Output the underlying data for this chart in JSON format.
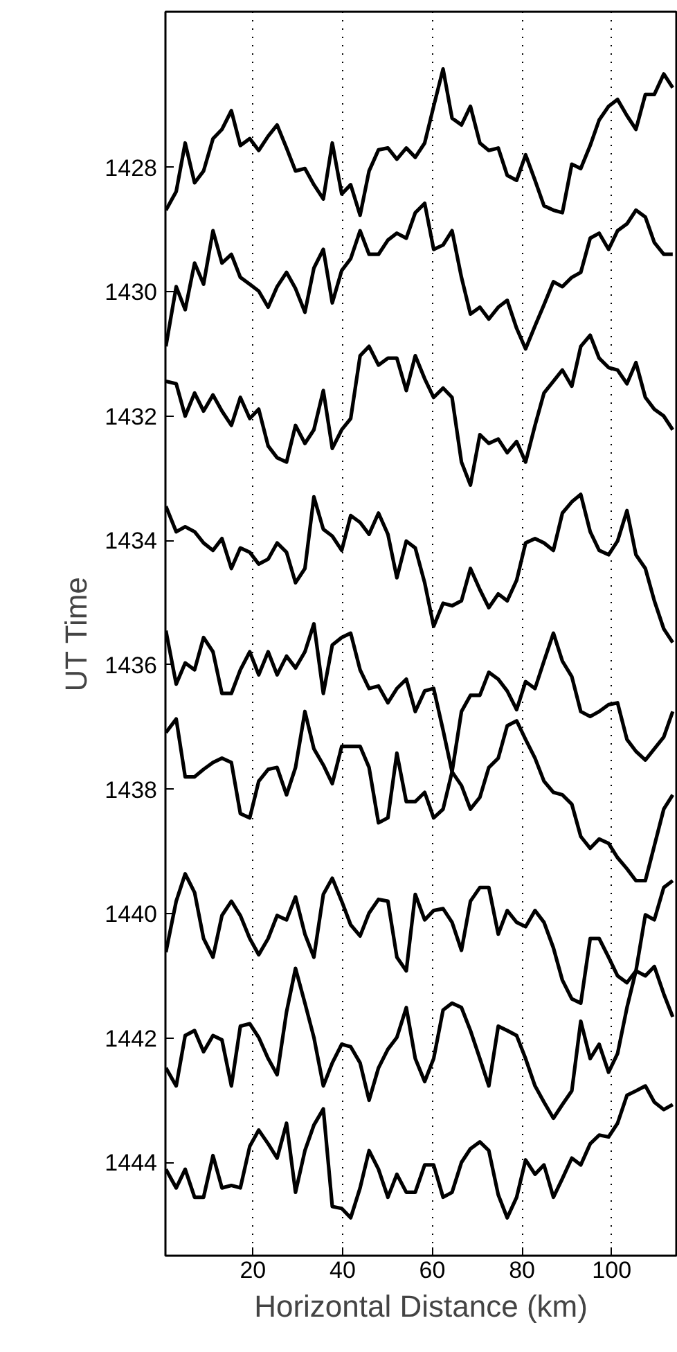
{
  "chart_data": {
    "type": "line",
    "xlabel": "Horizontal Distance (km)",
    "ylabel": "UT Time",
    "xlim": [
      0.5,
      114.4
    ],
    "ylim": [
      1445.5,
      1425.5
    ],
    "xticks": [
      20,
      40,
      60,
      80,
      100
    ],
    "yticks": [
      1428,
      1430,
      1432,
      1434,
      1436,
      1438,
      1440,
      1442,
      1444
    ],
    "grid": "x",
    "line_style": "solid",
    "x": [
      0.6,
      2.9,
      4.9,
      7.0,
      9.0,
      11.1,
      13.1,
      15.2,
      17.2,
      19.3,
      21.3,
      23.4,
      25.4,
      27.5,
      29.5,
      31.6,
      33.6,
      35.7,
      37.7,
      39.8,
      41.8,
      43.9,
      45.9,
      48.0,
      50.1,
      52.1,
      54.2,
      56.2,
      58.3,
      60.3,
      62.4,
      64.4,
      66.5,
      68.5,
      70.6,
      72.6,
      74.7,
      76.7,
      78.8,
      80.8,
      82.9,
      84.9,
      87.0,
      89.0,
      91.1,
      93.1,
      95.2,
      97.2,
      99.3,
      101.3,
      103.4,
      105.4,
      107.5,
      109.5,
      111.6,
      113.6
    ],
    "series": [
      {
        "color": "#000000",
        "values": [
          1428.69,
          1428.39,
          1427.61,
          1428.25,
          1428.06,
          1427.54,
          1427.39,
          1427.09,
          1427.65,
          1427.54,
          1427.73,
          1427.5,
          1427.32,
          1427.69,
          1428.06,
          1428.02,
          1428.28,
          1428.51,
          1427.61,
          1428.43,
          1428.28,
          1428.77,
          1428.06,
          1427.72,
          1427.69,
          1427.87,
          1427.69,
          1427.84,
          1427.61,
          1427.02,
          1426.42,
          1427.21,
          1427.32,
          1427.02,
          1427.61,
          1427.73,
          1427.69,
          1428.13,
          1428.21,
          1427.8,
          1428.21,
          1428.62,
          1428.69,
          1428.73,
          1427.95,
          1428.02,
          1427.65,
          1427.24,
          1427.02,
          1426.91,
          1427.17,
          1427.39,
          1426.83,
          1426.83,
          1426.5,
          1426.72
        ]
      },
      {
        "color": "#000000",
        "values": [
          1430.88,
          1429.92,
          1430.29,
          1429.54,
          1429.88,
          1429.02,
          1429.54,
          1429.4,
          1429.77,
          1429.88,
          1429.99,
          1430.25,
          1429.92,
          1429.69,
          1429.95,
          1430.33,
          1429.62,
          1429.32,
          1430.18,
          1429.66,
          1429.47,
          1429.02,
          1429.4,
          1429.4,
          1429.17,
          1429.06,
          1429.14,
          1428.73,
          1428.58,
          1429.32,
          1429.25,
          1429.02,
          1429.77,
          1430.36,
          1430.25,
          1430.44,
          1430.25,
          1430.14,
          1430.59,
          1430.92,
          1430.55,
          1430.21,
          1429.84,
          1429.92,
          1429.77,
          1429.69,
          1429.14,
          1429.06,
          1429.32,
          1429.02,
          1428.91,
          1428.69,
          1428.8,
          1429.21,
          1429.4,
          1429.4
        ]
      },
      {
        "color": "#000000",
        "values": [
          1431.44,
          1431.48,
          1432.0,
          1431.63,
          1431.92,
          1431.66,
          1431.92,
          1432.15,
          1431.7,
          1432.04,
          1431.89,
          1432.48,
          1432.67,
          1432.74,
          1432.15,
          1432.44,
          1432.22,
          1431.59,
          1432.52,
          1432.22,
          1432.04,
          1431.03,
          1430.88,
          1431.18,
          1431.07,
          1431.07,
          1431.59,
          1431.03,
          1431.4,
          1431.7,
          1431.55,
          1431.7,
          1432.74,
          1433.11,
          1432.3,
          1432.44,
          1432.37,
          1432.59,
          1432.41,
          1432.74,
          1432.15,
          1431.63,
          1431.44,
          1431.26,
          1431.52,
          1430.88,
          1430.7,
          1431.07,
          1431.22,
          1431.26,
          1431.48,
          1431.14,
          1431.7,
          1431.89,
          1432.0,
          1432.22
        ]
      },
      {
        "color": "#000000",
        "values": [
          1433.45,
          1433.86,
          1433.78,
          1433.86,
          1434.04,
          1434.16,
          1433.97,
          1434.45,
          1434.12,
          1434.19,
          1434.38,
          1434.3,
          1434.04,
          1434.19,
          1434.68,
          1434.45,
          1433.3,
          1433.82,
          1433.93,
          1434.16,
          1433.6,
          1433.71,
          1433.9,
          1433.56,
          1433.9,
          1434.6,
          1434.01,
          1434.12,
          1434.68,
          1435.38,
          1435.01,
          1435.05,
          1434.97,
          1434.45,
          1434.79,
          1435.08,
          1434.86,
          1434.97,
          1434.64,
          1434.04,
          1433.97,
          1434.04,
          1434.16,
          1433.56,
          1433.38,
          1433.26,
          1433.86,
          1434.16,
          1434.23,
          1434.01,
          1433.52,
          1434.23,
          1434.45,
          1434.97,
          1435.42,
          1435.64
        ]
      },
      {
        "color": "#000000",
        "values": [
          1435.45,
          1436.31,
          1435.97,
          1436.08,
          1435.56,
          1435.79,
          1436.46,
          1436.46,
          1436.08,
          1435.79,
          1436.16,
          1435.79,
          1436.16,
          1435.86,
          1436.05,
          1435.79,
          1435.34,
          1436.46,
          1435.68,
          1435.56,
          1435.49,
          1436.08,
          1436.38,
          1436.34,
          1436.61,
          1436.38,
          1436.23,
          1436.75,
          1436.42,
          1436.38,
          1437.05,
          1437.72,
          1436.75,
          1436.49,
          1436.49,
          1436.12,
          1436.23,
          1436.42,
          1436.72,
          1436.27,
          1436.38,
          1435.94,
          1435.49,
          1435.94,
          1436.19,
          1436.75,
          1436.83,
          1436.75,
          1436.64,
          1436.61,
          1437.2,
          1437.39,
          1437.53,
          1437.35,
          1437.16,
          1436.75
        ]
      },
      {
        "color": "#000000",
        "values": [
          1437.09,
          1436.87,
          1437.8,
          1437.8,
          1437.68,
          1437.57,
          1437.5,
          1437.57,
          1438.39,
          1438.46,
          1437.87,
          1437.68,
          1437.65,
          1438.09,
          1437.65,
          1436.75,
          1437.35,
          1437.61,
          1437.91,
          1437.31,
          1437.31,
          1437.31,
          1437.65,
          1438.54,
          1438.46,
          1437.42,
          1438.2,
          1438.2,
          1438.05,
          1438.46,
          1438.32,
          1437.72,
          1437.94,
          1438.32,
          1438.13,
          1437.65,
          1437.5,
          1436.98,
          1436.9,
          1437.2,
          1437.5,
          1437.87,
          1438.05,
          1438.09,
          1438.24,
          1438.76,
          1438.95,
          1438.8,
          1438.87,
          1439.1,
          1439.28,
          1439.47,
          1439.47,
          1438.91,
          1438.32,
          1438.09
        ]
      },
      {
        "color": "#000000",
        "values": [
          1440.62,
          1439.8,
          1439.36,
          1439.66,
          1440.4,
          1440.7,
          1440.03,
          1439.8,
          1440.03,
          1440.4,
          1440.66,
          1440.4,
          1440.03,
          1440.1,
          1439.73,
          1440.33,
          1440.7,
          1439.69,
          1439.43,
          1439.8,
          1440.18,
          1440.36,
          1439.99,
          1439.77,
          1439.8,
          1440.7,
          1440.92,
          1439.69,
          1440.1,
          1439.95,
          1439.92,
          1440.14,
          1440.59,
          1439.8,
          1439.58,
          1439.58,
          1440.33,
          1439.95,
          1440.14,
          1440.21,
          1439.95,
          1440.14,
          1440.55,
          1441.07,
          1441.37,
          1441.44,
          1440.4,
          1440.4,
          1440.7,
          1441.0,
          1441.11,
          1440.92,
          1441.0,
          1440.85,
          1441.29,
          1441.66
        ]
      },
      {
        "color": "#000000",
        "values": [
          1442.48,
          1442.77,
          1441.96,
          1441.88,
          1442.22,
          1441.96,
          1442.03,
          1442.77,
          1441.81,
          1441.77,
          1441.99,
          1442.33,
          1442.59,
          1441.58,
          1440.88,
          1441.44,
          1441.99,
          1442.77,
          1442.4,
          1442.1,
          1442.14,
          1442.4,
          1443.0,
          1442.48,
          1442.18,
          1441.99,
          1441.51,
          1442.33,
          1442.7,
          1442.33,
          1441.55,
          1441.44,
          1441.51,
          1441.88,
          1442.33,
          1442.77,
          1441.81,
          1441.88,
          1441.96,
          1442.33,
          1442.77,
          1443.03,
          1443.29,
          1443.07,
          1442.85,
          1441.73,
          1442.33,
          1442.1,
          1442.55,
          1442.25,
          1441.51,
          1440.92,
          1440.02,
          1440.1,
          1439.58,
          1439.47
        ]
      },
      {
        "color": "#000000",
        "values": [
          1444.11,
          1444.41,
          1444.11,
          1444.56,
          1444.56,
          1443.89,
          1444.41,
          1444.37,
          1444.41,
          1443.74,
          1443.48,
          1443.7,
          1443.93,
          1443.37,
          1444.48,
          1443.81,
          1443.4,
          1443.14,
          1444.71,
          1444.74,
          1444.89,
          1444.41,
          1443.81,
          1444.11,
          1444.56,
          1444.19,
          1444.48,
          1444.48,
          1444.04,
          1444.04,
          1444.56,
          1444.48,
          1444.0,
          1443.78,
          1443.67,
          1443.81,
          1444.52,
          1444.89,
          1444.56,
          1443.96,
          1444.19,
          1444.04,
          1444.56,
          1444.26,
          1443.93,
          1444.04,
          1443.7,
          1443.56,
          1443.59,
          1443.37,
          1442.92,
          1442.85,
          1442.77,
          1443.03,
          1443.15,
          1443.07
        ]
      }
    ]
  }
}
